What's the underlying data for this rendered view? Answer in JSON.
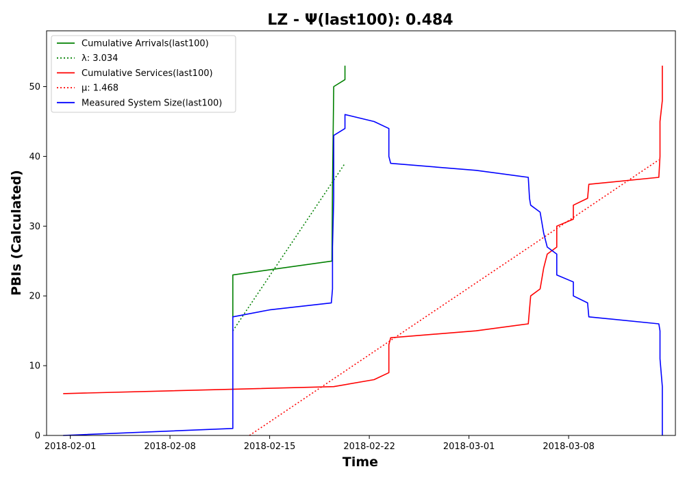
{
  "chart_data": {
    "type": "line",
    "title": "LZ -  Ψ(last100): 0.484",
    "xlabel": "Time",
    "ylabel": "PBIs (Calculated)",
    "x_tick_labels": [
      "2018-02-01",
      "2018-02-08",
      "2018-02-15",
      "2018-02-22",
      "2018-03-01",
      "2018-03-08"
    ],
    "y_tick_labels": [
      "0",
      "10",
      "20",
      "30",
      "40",
      "50"
    ],
    "xlim": [
      "2018-01-30T08:00",
      "2018-03-15T12:00"
    ],
    "ylim": [
      0,
      58
    ],
    "grid": false,
    "legend_position": "top-left",
    "series": [
      {
        "name": "Cumulative Arrivals(last100)",
        "color": "#008000",
        "style": "solid",
        "points": [
          [
            "2018-02-12T10:00",
            17
          ],
          [
            "2018-02-12T10:00",
            23
          ],
          [
            "2018-02-19T09:00",
            25
          ],
          [
            "2018-02-19T10:00",
            36
          ],
          [
            "2018-02-19T12:00",
            50
          ],
          [
            "2018-02-20T07:00",
            51
          ],
          [
            "2018-02-20T07:00",
            53
          ]
        ]
      },
      {
        "name": "λ: 3.034",
        "color": "#008000",
        "style": "dotted",
        "points": [
          [
            "2018-02-12T10:00",
            15
          ],
          [
            "2018-02-20T07:00",
            39
          ]
        ]
      },
      {
        "name": "Cumulative Services(last100)",
        "color": "#ff0000",
        "style": "solid",
        "points": [
          [
            "2018-01-31T12:00",
            6
          ],
          [
            "2018-02-19T12:00",
            7
          ],
          [
            "2018-02-22T08:00",
            8
          ],
          [
            "2018-02-23T09:00",
            9
          ],
          [
            "2018-02-23T09:00",
            13
          ],
          [
            "2018-02-23T12:00",
            14
          ],
          [
            "2018-03-01T12:00",
            15
          ],
          [
            "2018-03-05T04:00",
            16
          ],
          [
            "2018-03-05T08:00",
            20
          ],
          [
            "2018-03-06T00:00",
            21
          ],
          [
            "2018-03-06T06:00",
            24
          ],
          [
            "2018-03-06T12:00",
            26
          ],
          [
            "2018-03-07T04:00",
            27
          ],
          [
            "2018-03-07T04:00",
            30
          ],
          [
            "2018-03-08T08:00",
            31
          ],
          [
            "2018-03-08T08:00",
            33
          ],
          [
            "2018-03-09T08:00",
            34
          ],
          [
            "2018-03-09T10:00",
            36
          ],
          [
            "2018-03-14T08:00",
            37
          ],
          [
            "2018-03-14T10:00",
            40
          ],
          [
            "2018-03-14T10:00",
            45
          ],
          [
            "2018-03-14T14:00",
            48
          ],
          [
            "2018-03-14T14:00",
            53
          ]
        ]
      },
      {
        "name": "μ: 1.468",
        "color": "#ff0000",
        "style": "dotted",
        "points": [
          [
            "2018-02-13T14:00",
            0
          ],
          [
            "2018-03-14T08:00",
            39.5
          ]
        ]
      },
      {
        "name": "Measured System Size(last100)",
        "color": "#0000ff",
        "style": "solid",
        "points": [
          [
            "2018-01-31T12:00",
            0
          ],
          [
            "2018-02-12T10:00",
            1
          ],
          [
            "2018-02-12T10:00",
            17
          ],
          [
            "2018-02-15T00:00",
            18
          ],
          [
            "2018-02-19T08:00",
            19
          ],
          [
            "2018-02-19T10:00",
            21
          ],
          [
            "2018-02-19T10:00",
            27
          ],
          [
            "2018-02-19T12:00",
            34
          ],
          [
            "2018-02-19T12:00",
            43
          ],
          [
            "2018-02-20T07:00",
            44
          ],
          [
            "2018-02-20T07:00",
            46
          ],
          [
            "2018-02-22T08:00",
            45
          ],
          [
            "2018-02-23T09:00",
            44
          ],
          [
            "2018-02-23T09:00",
            40
          ],
          [
            "2018-02-23T12:00",
            39
          ],
          [
            "2018-03-01T12:00",
            38
          ],
          [
            "2018-03-05T04:00",
            37
          ],
          [
            "2018-03-05T06:00",
            34
          ],
          [
            "2018-03-05T08:00",
            33
          ],
          [
            "2018-03-06T00:00",
            32
          ],
          [
            "2018-03-06T06:00",
            29
          ],
          [
            "2018-03-06T12:00",
            27
          ],
          [
            "2018-03-07T04:00",
            26
          ],
          [
            "2018-03-07T04:00",
            23
          ],
          [
            "2018-03-08T08:00",
            22
          ],
          [
            "2018-03-08T08:00",
            20
          ],
          [
            "2018-03-09T08:00",
            19
          ],
          [
            "2018-03-09T10:00",
            17
          ],
          [
            "2018-03-14T08:00",
            16
          ],
          [
            "2018-03-14T10:00",
            15
          ],
          [
            "2018-03-14T10:00",
            11
          ],
          [
            "2018-03-14T14:00",
            7
          ],
          [
            "2018-03-14T14:00",
            0
          ]
        ]
      }
    ]
  }
}
